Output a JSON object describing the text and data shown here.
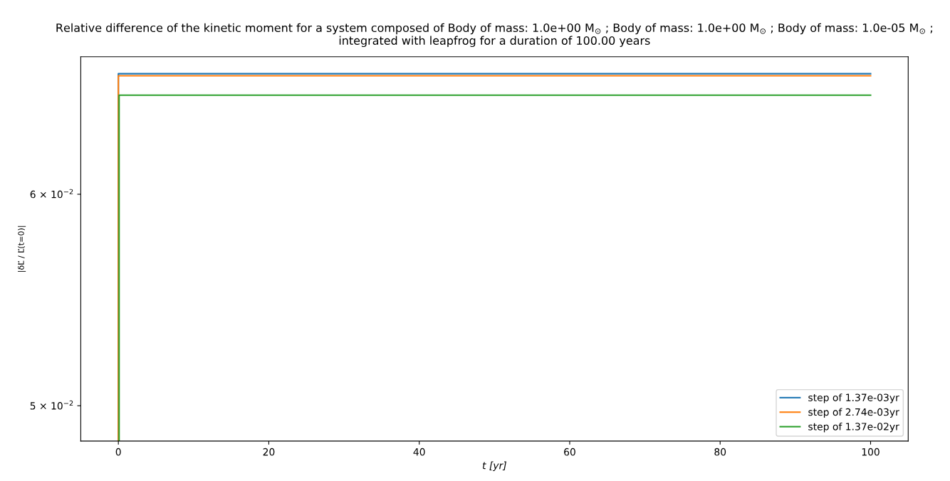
{
  "chart_data": {
    "type": "line",
    "title": "Relative difference of the kinetic moment for a system composed of Body of mass: 1.0e+00 M$_{⊙}$ ; Body of mass: 1.0e+00 M$_{⊙}$ ; Body of mass: 1.0e-05 M$_{⊙}$ ;\nintegrated with leapfrog for a duration of 100.00 years",
    "xlabel": "t [yr]",
    "ylabel": "|δL⃗ / L⃗(t=0)|",
    "series": [
      {
        "name": "step of 1.37e-03yr",
        "color": "#1f77b4",
        "x": [
          0,
          0,
          100
        ],
        "values": [
          0.0485,
          0.06657,
          0.06657
        ]
      },
      {
        "name": "step of 2.74e-03yr",
        "color": "#ff7f0e",
        "x": [
          0,
          0,
          100
        ],
        "values": [
          0.0485,
          0.06645,
          0.06645
        ]
      },
      {
        "name": "step of 1.37e-02yr",
        "color": "#2ca02c",
        "x": [
          0.1,
          0.1,
          100
        ],
        "values": [
          0.0485,
          0.06535,
          0.06535
        ]
      }
    ],
    "log": "y",
    "xlim": [
      -5,
      105
    ],
    "xticks": [
      0,
      20,
      40,
      60,
      80,
      100
    ],
    "ylim": [
      0.0485,
      0.06755
    ],
    "yticks": [
      {
        "value": 0.05,
        "label": "5 × 10$^{−2}$"
      },
      {
        "value": 0.06,
        "label": "6 × 10$^{−2}$"
      }
    ],
    "legend": "lower right",
    "grid": false
  }
}
